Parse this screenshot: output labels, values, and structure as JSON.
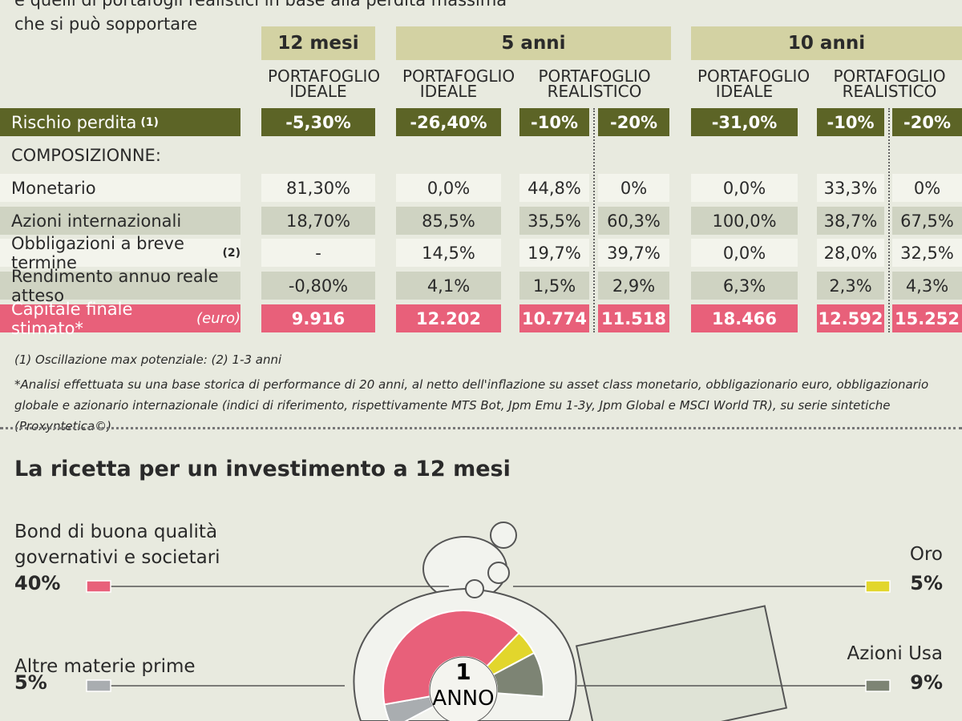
{
  "header": {
    "lines": [
      "e quelli di portafogli realistici in base alla perdita massima",
      "che si può sopportare"
    ]
  },
  "table": {
    "groups": [
      {
        "title": "12 mesi",
        "headers": [
          "PORTAFOGLIO IDEALE"
        ]
      },
      {
        "title": "5 anni",
        "headers": [
          "PORTAFOGLIO IDEALE",
          "PORTAFOGLIO REALISTICO"
        ]
      },
      {
        "title": "10 anni",
        "headers": [
          "PORTAFOGLIO IDEALE",
          "PORTAFOGLIO REALISTICO"
        ]
      }
    ],
    "rows": [
      {
        "label": "Rischio perdita",
        "note": "(1)",
        "cells": [
          "-5,30%",
          "-26,40%",
          "-10%",
          "-20%",
          "-31,0%",
          "-10%",
          "-20%"
        ]
      },
      {
        "label": "COMPOSIZIONNE:"
      },
      {
        "label": "Monetario",
        "cells": [
          "81,30%",
          "0,0%",
          "44,8%",
          "0%",
          "0,0%",
          "33,3%",
          "0%"
        ]
      },
      {
        "label": "Azioni internazionali",
        "cells": [
          "18,70%",
          "85,5%",
          "35,5%",
          "60,3%",
          "100,0%",
          "38,7%",
          "67,5%"
        ]
      },
      {
        "label": "Obbligazioni a breve termine",
        "note": "(2)",
        "cells": [
          "-",
          "14,5%",
          "19,7%",
          "39,7%",
          "0,0%",
          "28,0%",
          "32,5%"
        ]
      },
      {
        "label": "Rendimento annuo reale atteso",
        "cells": [
          "-0,80%",
          "4,1%",
          "1,5%",
          "2,9%",
          "6,3%",
          "2,3%",
          "4,3%"
        ]
      },
      {
        "label": "Capitale finale stimato*",
        "unit": "(euro)",
        "cells": [
          "9.916",
          "12.202",
          "10.774",
          "11.518",
          "18.466",
          "12.592",
          "15.252"
        ]
      }
    ]
  },
  "footnotes": [
    "(1) Oscillazione max potenziale: (2) 1-3 anni",
    "*Analisi effettuata su una base storica di performance di 20 anni, al netto dell'inflazione su asset class monetario, obbligazionario euro, obbligazionario globale e azionario internazionale (indici di riferimento, rispettivamente MTS Bot, Jpm Emu 1-3y, Jpm Global e MSCI World TR), su serie sintetiche (Proxyntetica©)"
  ],
  "chart_data": {
    "type": "donut",
    "title": "La ricetta per un investimento a 12 mesi",
    "center": [
      "1",
      "ANNO"
    ],
    "categories": [
      "Altre materie prime",
      "Bond di buona qualità governativi e societari",
      "Oro",
      "Azioni Usa"
    ],
    "values": [
      5,
      40,
      5,
      9
    ],
    "value_labels": [
      "5%",
      "40%",
      "5%",
      "9%"
    ],
    "colors": [
      "#a9adb0",
      "#e8607a",
      "#e2d62c",
      "#7d8474"
    ]
  }
}
